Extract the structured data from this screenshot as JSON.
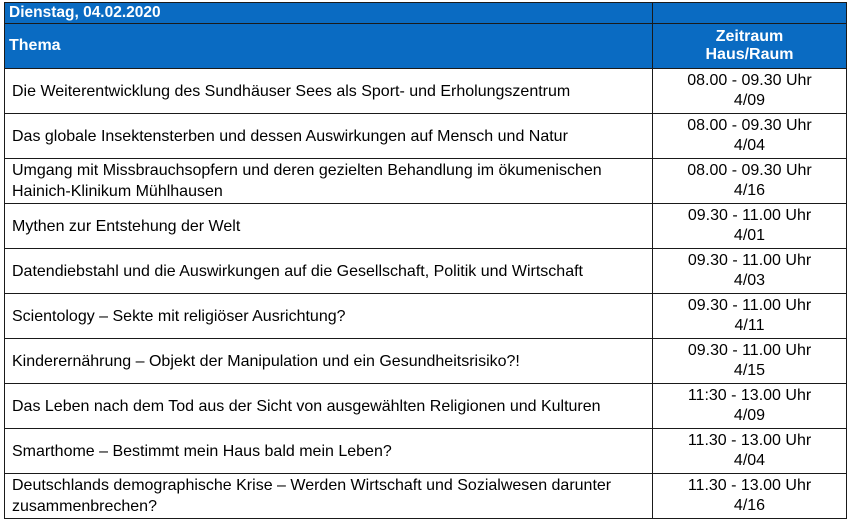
{
  "header": {
    "date": "Dienstag, 04.02.2020",
    "topic_label": "Thema",
    "time_label": "Zeitraum",
    "room_label": "Haus/Raum"
  },
  "rows": [
    {
      "topic": "Die Weiterentwicklung des Sundhäuser Sees als Sport- und Erholungszentrum",
      "time": "08.00 - 09.30 Uhr",
      "room": "4/09"
    },
    {
      "topic": "Das globale Insektensterben und dessen Auswirkungen  auf Mensch und Natur",
      "time": "08.00 - 09.30 Uhr",
      "room": "4/04"
    },
    {
      "topic": "Umgang mit Missbrauchsopfern und deren gezielten Behandlung im ökumenischen Hainich-Klinikum Mühlhausen",
      "time": "08.00 - 09.30 Uhr",
      "room": "4/16"
    },
    {
      "topic": "Mythen zur Entstehung der Welt",
      "time": "09.30 - 11.00 Uhr",
      "room": "4/01"
    },
    {
      "topic": "Datendiebstahl und die Auswirkungen auf die Gesellschaft, Politik und Wirtschaft",
      "time": "09.30 - 11.00 Uhr",
      "room": "4/03"
    },
    {
      "topic": "Scientology – Sekte mit religiöser Ausrichtung?",
      "time": "09.30 - 11.00 Uhr",
      "room": "4/11"
    },
    {
      "topic": "Kinderernährung – Objekt der Manipulation und ein Gesundheitsrisiko?!",
      "time": "09.30 - 11.00 Uhr",
      "room": "4/15"
    },
    {
      "topic": "Das Leben nach dem Tod aus der Sicht von ausgewählten Religionen und Kulturen",
      "time": "11:30 - 13.00 Uhr",
      "room": "4/09"
    },
    {
      "topic": "Smarthome – Bestimmt mein Haus bald mein Leben?",
      "time": "11.30 - 13.00 Uhr",
      "room": "4/04"
    },
    {
      "topic": "Deutschlands demographische Krise – Werden Wirtschaft und Sozialwesen darunter zusammenbrechen?",
      "time": "11.30 - 13.00 Uhr",
      "room": "4/16"
    }
  ]
}
